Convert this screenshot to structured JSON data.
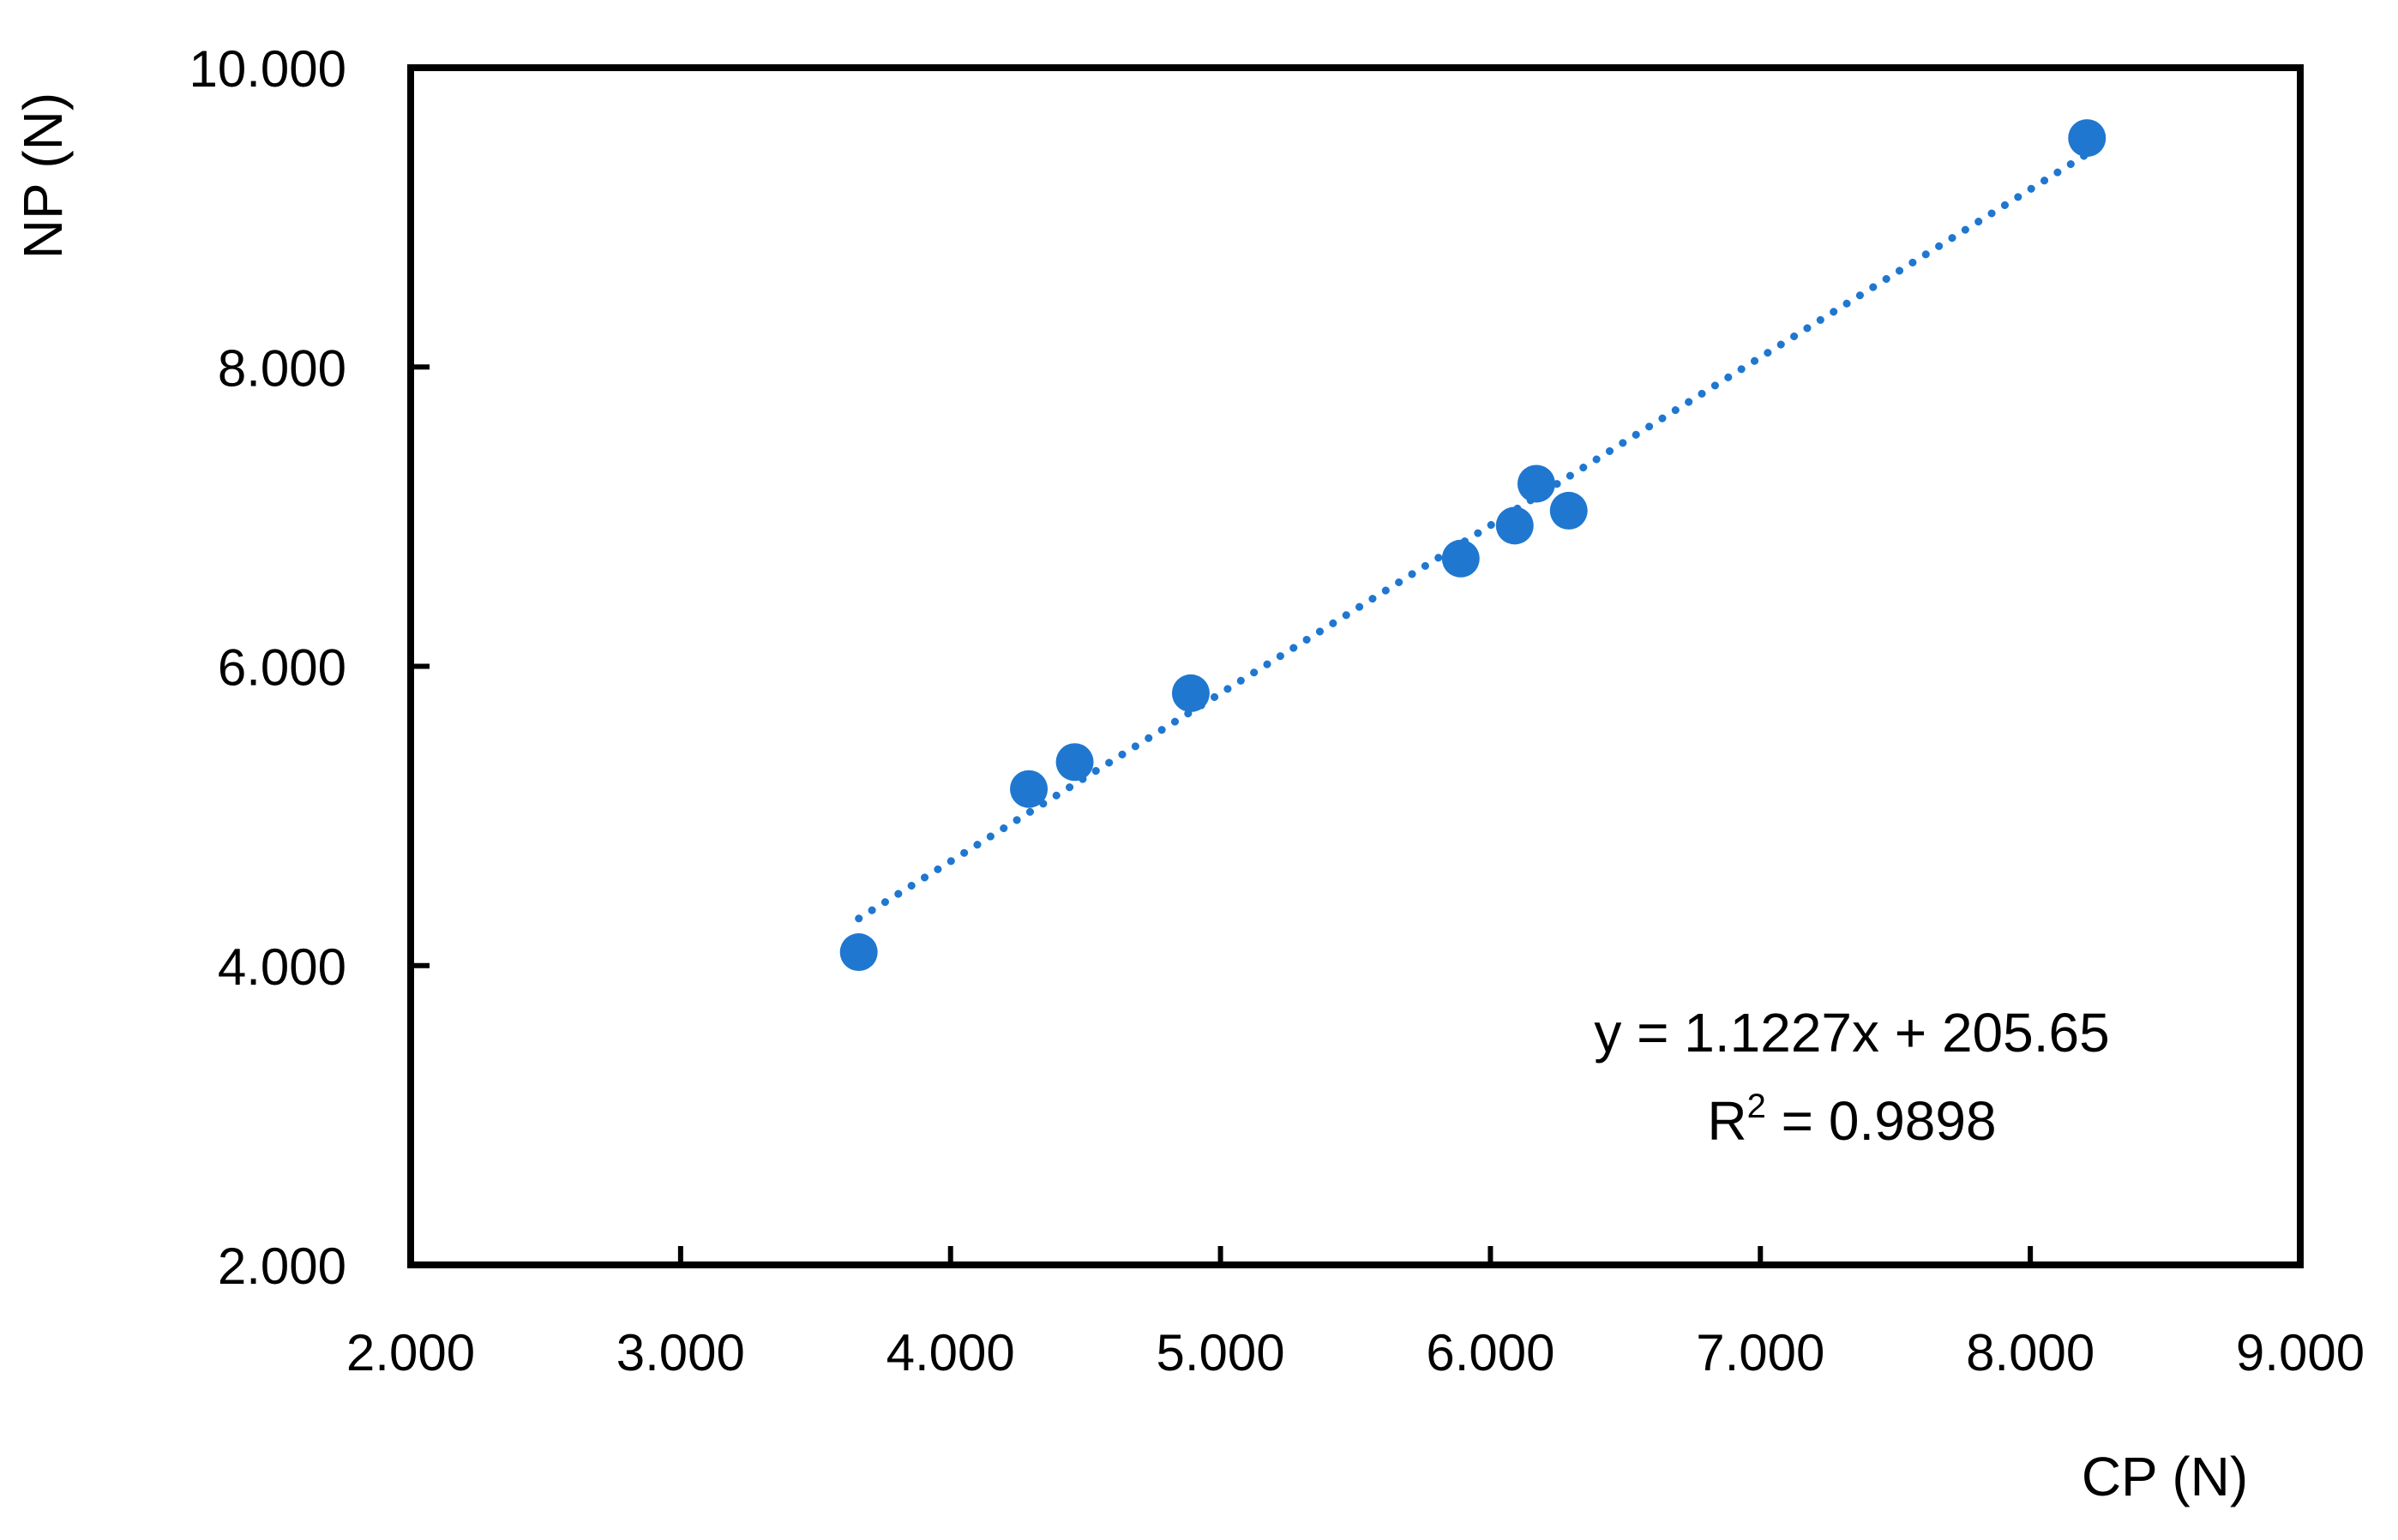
{
  "chart_data": {
    "type": "scatter",
    "title": "",
    "xlabel": "CP (N)",
    "ylabel": "NP (N)",
    "xlim": [
      2000,
      9000
    ],
    "ylim": [
      2000,
      10000
    ],
    "xticks": [
      2000,
      3000,
      4000,
      5000,
      6000,
      7000,
      8000,
      9000
    ],
    "xtick_labels": [
      "2.000",
      "3.000",
      "4.000",
      "5.000",
      "6.000",
      "7.000",
      "8.000",
      "9.000"
    ],
    "yticks": [
      2000,
      4000,
      6000,
      8000,
      10000
    ],
    "ytick_labels": [
      "2.000",
      "4.000",
      "6.000",
      "8.000",
      "10.000"
    ],
    "grid": false,
    "legend": "none",
    "marker_color": "#1F77D0",
    "trendline_color": "#1F77D0",
    "points": [
      {
        "x": 3660,
        "y": 4090
      },
      {
        "x": 4290,
        "y": 5180
      },
      {
        "x": 4460,
        "y": 5360
      },
      {
        "x": 4890,
        "y": 5820
      },
      {
        "x": 5890,
        "y": 6720
      },
      {
        "x": 6090,
        "y": 6940
      },
      {
        "x": 6170,
        "y": 7220
      },
      {
        "x": 6290,
        "y": 7040
      },
      {
        "x": 8210,
        "y": 9530
      }
    ],
    "trendline": {
      "type": "linear",
      "slope": 1.1227,
      "intercept": 205.65,
      "x_range": [
        3660,
        8210
      ],
      "style": "dotted"
    },
    "annotations": {
      "equation": "y = 1.1227x + 205.65",
      "r_squared_prefix": "R",
      "r_squared_sup": "2",
      "r_squared_suffix": " = 0.9898"
    }
  }
}
